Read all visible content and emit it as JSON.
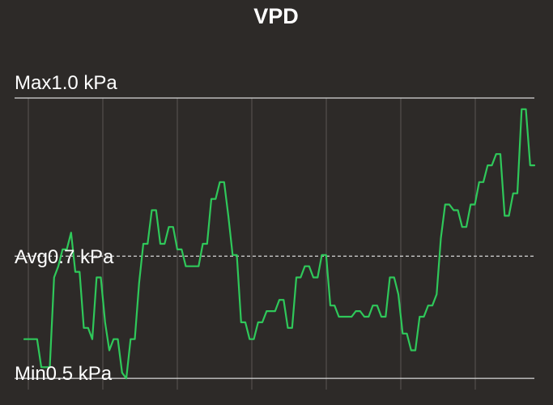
{
  "title": "VPD",
  "labels": {
    "max": "Max1.0 kPa",
    "avg": "Avg0.7 kPa",
    "min": "Min0.5 kPa"
  },
  "colors": {
    "background": "#2d2a28",
    "line": "#2fc85a",
    "grid": "#5b5754",
    "reference": "#d8d8d8",
    "text": "#ffffff"
  },
  "chart_data": {
    "type": "line",
    "title": "VPD",
    "xlabel": "",
    "ylabel": "",
    "grid": "vertical",
    "ylim": [
      0.48,
      1.0
    ],
    "reference_lines": [
      {
        "label": "Max1.0 kPa",
        "value": 1.0,
        "style": "solid"
      },
      {
        "label": "Avg0.7 kPa",
        "value": 0.718,
        "style": "dashed"
      },
      {
        "label": "Min0.5 kPa",
        "value": 0.5,
        "style": "solid"
      }
    ],
    "x": [
      0,
      1,
      2,
      3,
      4,
      5,
      6,
      7,
      8,
      9,
      10,
      11,
      12,
      13,
      14,
      15,
      16,
      17,
      18,
      19,
      20,
      21,
      22,
      23,
      24,
      25,
      26,
      27,
      28,
      29,
      30,
      31,
      32,
      33,
      34,
      35,
      36,
      37,
      38,
      39,
      40,
      41,
      42,
      43,
      44,
      45,
      46,
      47,
      48,
      49,
      50,
      51,
      52,
      53,
      54,
      55,
      56,
      57,
      58,
      59,
      60,
      61,
      62,
      63,
      64,
      65,
      66,
      67,
      68,
      69,
      70,
      71,
      72,
      73,
      74,
      75,
      76,
      77,
      78,
      79,
      80,
      81,
      82,
      83,
      84,
      85,
      86,
      87,
      88,
      89,
      90,
      91,
      92,
      93,
      94,
      95,
      96,
      97,
      98,
      99,
      100,
      101,
      102,
      103,
      104,
      105,
      106,
      107,
      108,
      109,
      110,
      111,
      112,
      113,
      114,
      115,
      116,
      117,
      118,
      119,
      120
    ],
    "series": [
      {
        "values": [
          0.57,
          0.57,
          0.57,
          0.57,
          0.52,
          0.52,
          0.52,
          0.68,
          0.7,
          0.73,
          0.73,
          0.76,
          0.69,
          0.69,
          0.59,
          0.59,
          0.57,
          0.68,
          0.68,
          0.6,
          0.55,
          0.57,
          0.57,
          0.51,
          0.5,
          0.57,
          0.57,
          0.67,
          0.74,
          0.74,
          0.8,
          0.8,
          0.74,
          0.74,
          0.77,
          0.77,
          0.73,
          0.73,
          0.7,
          0.7,
          0.7,
          0.7,
          0.74,
          0.74,
          0.82,
          0.82,
          0.85,
          0.85,
          0.79,
          0.72,
          0.72,
          0.6,
          0.6,
          0.57,
          0.57,
          0.6,
          0.6,
          0.62,
          0.62,
          0.62,
          0.64,
          0.64,
          0.59,
          0.59,
          0.68,
          0.68,
          0.7,
          0.7,
          0.68,
          0.68,
          0.72,
          0.72,
          0.63,
          0.63,
          0.61,
          0.61,
          0.61,
          0.61,
          0.62,
          0.62,
          0.61,
          0.61,
          0.63,
          0.63,
          0.61,
          0.61,
          0.68,
          0.68,
          0.65,
          0.58,
          0.58,
          0.55,
          0.55,
          0.61,
          0.61,
          0.63,
          0.63,
          0.65,
          0.75,
          0.81,
          0.81,
          0.8,
          0.8,
          0.77,
          0.77,
          0.81,
          0.81,
          0.85,
          0.85,
          0.88,
          0.88,
          0.9,
          0.9,
          0.79,
          0.79,
          0.83,
          0.83,
          0.98,
          0.98,
          0.88,
          0.88
        ]
      }
    ]
  }
}
